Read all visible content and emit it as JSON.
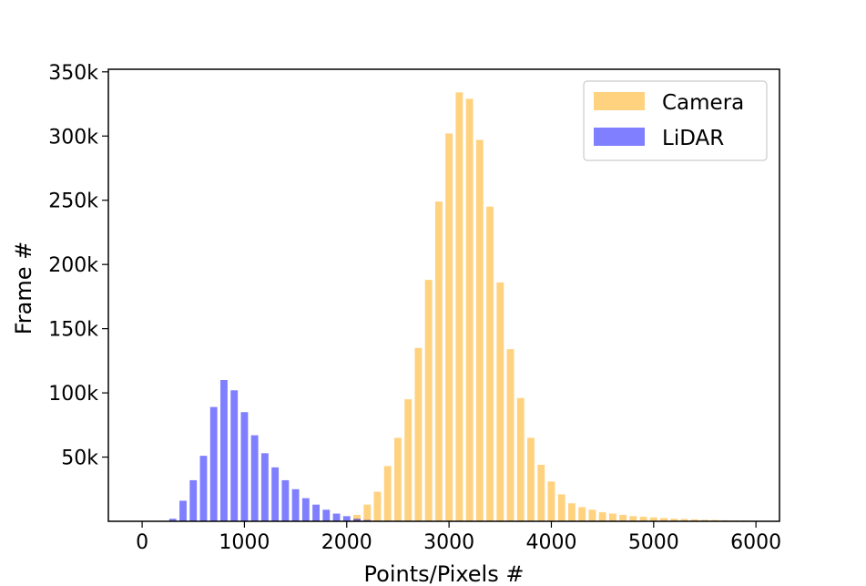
{
  "chart_data": {
    "type": "bar",
    "title": "",
    "xlabel": "Points/Pixels #",
    "ylabel": "Frame #",
    "xlim": [
      -330,
      6230
    ],
    "ylim": [
      0,
      352000
    ],
    "xticks": [
      0,
      1000,
      2000,
      3000,
      4000,
      5000,
      6000
    ],
    "xtick_labels": [
      "0",
      "1000",
      "2000",
      "3000",
      "4000",
      "5000",
      "6000"
    ],
    "yticks": [
      50000,
      100000,
      150000,
      200000,
      250000,
      300000,
      350000
    ],
    "ytick_labels": [
      "50k",
      "100k",
      "150k",
      "200k",
      "250k",
      "300k",
      "350k"
    ],
    "legend_position": "top-right",
    "grid": false,
    "bin_width": 100,
    "series": [
      {
        "name": "Camera",
        "color": "#ffa500",
        "opacity": 0.5,
        "x": [
          2100,
          2200,
          2300,
          2400,
          2500,
          2600,
          2700,
          2800,
          2900,
          3000,
          3100,
          3200,
          3300,
          3400,
          3500,
          3600,
          3700,
          3800,
          3900,
          4000,
          4100,
          4200,
          4300,
          4400,
          4500,
          4600,
          4700,
          4800,
          4900,
          5000,
          5100,
          5200,
          5300,
          5400,
          5500,
          5600,
          5700,
          5800,
          5900,
          6000
        ],
        "values": [
          5000,
          13000,
          23000,
          43000,
          65000,
          95000,
          135000,
          188000,
          249000,
          302000,
          334000,
          329000,
          297000,
          245000,
          186000,
          134000,
          96000,
          65000,
          44000,
          31000,
          21000,
          14000,
          11000,
          9000,
          7000,
          6000,
          5000,
          4000,
          3500,
          3000,
          2500,
          2000,
          1800,
          1500,
          1200,
          1000,
          800,
          600,
          500,
          400
        ]
      },
      {
        "name": "LiDAR",
        "color": "#0000ff",
        "opacity": 0.5,
        "x": [
          300,
          400,
          500,
          600,
          700,
          800,
          900,
          1000,
          1100,
          1200,
          1300,
          1400,
          1500,
          1600,
          1700,
          1800,
          1900,
          2000,
          2100,
          2200
        ],
        "values": [
          2000,
          16000,
          32000,
          51000,
          89000,
          110000,
          102000,
          85000,
          67000,
          53000,
          42000,
          32000,
          25000,
          18000,
          13000,
          9000,
          6000,
          4000,
          2000,
          1000
        ]
      }
    ]
  }
}
